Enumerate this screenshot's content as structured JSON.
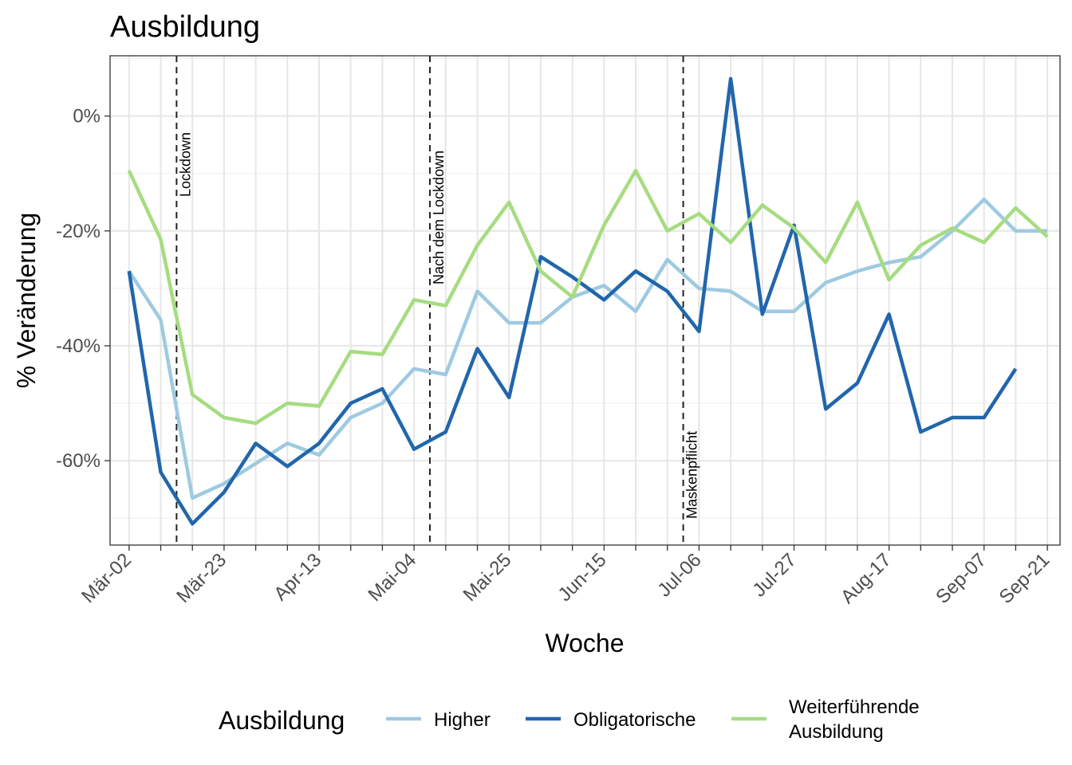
{
  "chart_data": {
    "type": "line",
    "title": "Ausbildung",
    "xlabel": "Woche",
    "ylabel": "% Veränderung",
    "x_tick_labels": [
      "Mär-02",
      "Mär-23",
      "Apr-13",
      "Mai-04",
      "Mai-25",
      "Jun-15",
      "Jul-06",
      "Jul-27",
      "Aug-17",
      "Sep-07",
      "Sep-21"
    ],
    "x_tick_weeks": [
      0,
      3,
      6,
      9,
      12,
      15,
      18,
      21,
      24,
      27,
      29
    ],
    "x_range_weeks": [
      -0.6,
      29.4
    ],
    "y_tick_labels": [
      "0%",
      "-20%",
      "-40%",
      "-60%"
    ],
    "y_tick_values": [
      0,
      -20,
      -40,
      -60
    ],
    "y_range": [
      -74.7,
      10.5
    ],
    "grid": true,
    "legend_position": "bottom",
    "legend_title": "Ausbildung",
    "annotations": [
      {
        "label": "Lockdown",
        "week": 1.5
      },
      {
        "label": "Nach dem Lockdown",
        "week": 9.5
      },
      {
        "label": "Maskenpflicht",
        "week": 17.5
      }
    ],
    "series": [
      {
        "name": "Higher",
        "color": "#9ecae1",
        "values": [
          -27,
          -35.5,
          -66.5,
          -64,
          -60.5,
          -57,
          -59,
          -52.5,
          -50,
          -44,
          -45,
          -30.5,
          -36,
          -36,
          -31.5,
          -29.5,
          -34,
          -25,
          -30,
          -30.5,
          -34,
          -34,
          -29,
          -27,
          -25.5,
          -24.5,
          -20,
          -14.5,
          -20,
          -20
        ]
      },
      {
        "name": "Obligatorische",
        "color": "#2166ac",
        "values": [
          -27,
          -62,
          -71,
          -65.5,
          -57,
          -61,
          -57,
          -50,
          -47.5,
          -58,
          -55,
          -40.5,
          -49,
          -24.5,
          -28,
          -32,
          -27,
          -30.5,
          -37.5,
          6.5,
          -34.5,
          -19,
          -51,
          -46.5,
          -34.5,
          -55,
          -52.5,
          -52.5,
          -44,
          null
        ]
      },
      {
        "name": "Weiterführende Ausbildung",
        "legend_lines": [
          "Weiterführende",
          "Ausbildung"
        ],
        "color": "#a6dc80",
        "values": [
          -9.5,
          -21.5,
          -48.5,
          -52.5,
          -53.5,
          -50,
          -50.5,
          -41,
          -41.5,
          -32,
          -33,
          -22.5,
          -15,
          -27,
          -31.5,
          -19,
          -9.5,
          -20,
          -17,
          -22,
          -15.5,
          -19.5,
          -25.5,
          -15,
          -28.5,
          -22.5,
          -19.5,
          -22,
          -16,
          -21
        ]
      }
    ]
  }
}
